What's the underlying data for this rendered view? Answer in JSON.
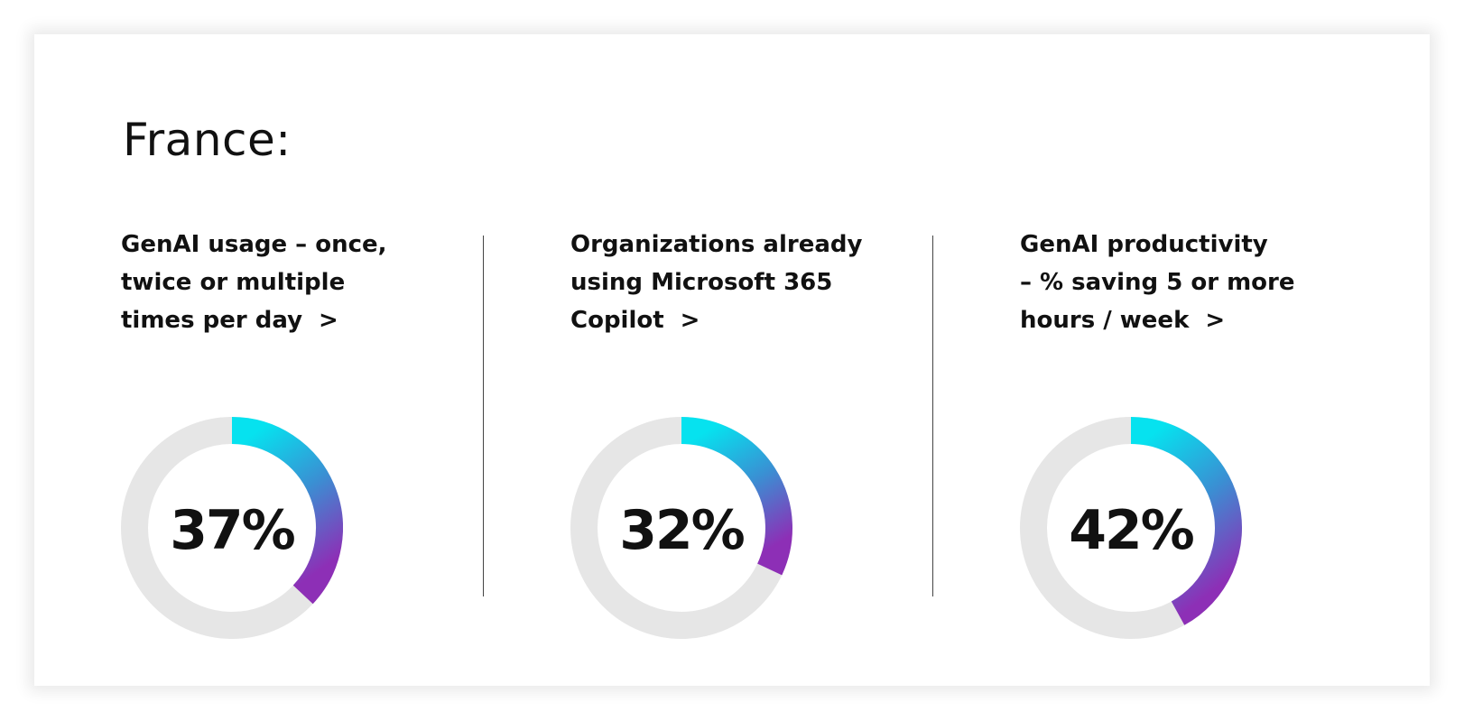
{
  "title": "France:",
  "colors": {
    "track": "#e6e6e6",
    "gradient_start": "#06e2ef",
    "gradient_mid": "#3a8fd3",
    "gradient_end": "#8d2fb6",
    "text": "#111111"
  },
  "chart_data": [
    {
      "type": "pie",
      "label_lines": [
        "GenAI usage – once,",
        "twice or multiple",
        "times per day"
      ],
      "chevron": ">",
      "value": 37,
      "value_label": "37%",
      "ylim": [
        0,
        100
      ]
    },
    {
      "type": "pie",
      "label_lines": [
        "Organizations already",
        "using Microsoft 365",
        "Copilot"
      ],
      "chevron": ">",
      "value": 32,
      "value_label": "32%",
      "ylim": [
        0,
        100
      ]
    },
    {
      "type": "pie",
      "label_lines": [
        "GenAI productivity",
        "–  % saving 5 or more",
        "hours / week"
      ],
      "chevron": ">",
      "value": 42,
      "value_label": "42%",
      "ylim": [
        0,
        100
      ]
    }
  ]
}
